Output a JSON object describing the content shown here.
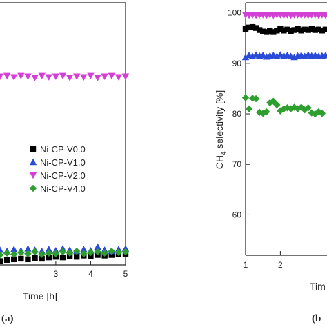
{
  "chart_data": [
    {
      "type": "scatter",
      "panel_label": "(a)",
      "xlabel": "Time [h]",
      "ylabel": "",
      "x_ticks": [
        3,
        4,
        5
      ],
      "xlim": [
        1.4,
        5
      ],
      "ylim": [
        60,
        102
      ],
      "legend": {
        "placement": "center-right",
        "entries": [
          "Ni-CP-V0.0",
          "Ni-CP-V1.0",
          "Ni-CP-V2.0",
          "Ni-CP-V4.0"
        ]
      },
      "series": [
        {
          "name": "Ni-CP-V0.0",
          "marker": "square",
          "color": "#000000",
          "x": [
            1.4,
            1.6,
            1.8,
            2.0,
            2.2,
            2.4,
            2.6,
            2.8,
            3.0,
            3.2,
            3.4,
            3.6,
            3.8,
            4.0,
            4.2,
            4.4,
            4.6,
            4.8,
            5.0
          ],
          "values": [
            60.6,
            60.8,
            60.9,
            61.0,
            60.9,
            61.1,
            61.0,
            61.2,
            61.3,
            61.2,
            61.4,
            61.3,
            61.5,
            61.4,
            61.6,
            61.5,
            61.6,
            61.7,
            61.8
          ]
        },
        {
          "name": "Ni-CP-V1.0",
          "marker": "triangle-up",
          "color": "#2a4bd7",
          "x": [
            1.4,
            1.6,
            1.8,
            2.0,
            2.2,
            2.4,
            2.6,
            2.8,
            3.0,
            3.2,
            3.4,
            3.6,
            3.8,
            4.0,
            4.2,
            4.4,
            4.6,
            4.8,
            5.0
          ],
          "values": [
            62.4,
            62.2,
            62.5,
            62.3,
            62.6,
            62.4,
            62.2,
            62.5,
            62.3,
            62.6,
            62.4,
            62.2,
            62.5,
            62.3,
            62.9,
            62.4,
            62.2,
            62.5,
            62.6
          ]
        },
        {
          "name": "Ni-CP-V2.0",
          "marker": "triangle-down",
          "color": "#d43fd6",
          "x": [
            1.4,
            1.6,
            1.8,
            2.0,
            2.2,
            2.4,
            2.6,
            2.8,
            3.0,
            3.2,
            3.4,
            3.6,
            3.8,
            4.0,
            4.2,
            4.4,
            4.6,
            4.8,
            5.0
          ],
          "values": [
            90.2,
            90.3,
            90.1,
            90.3,
            90.2,
            90.0,
            90.3,
            90.1,
            90.2,
            90.3,
            90.0,
            90.2,
            90.1,
            90.3,
            90.0,
            90.2,
            90.3,
            90.1,
            90.2
          ]
        },
        {
          "name": "Ni-CP-V4.0",
          "marker": "diamond",
          "color": "#2e9e2e",
          "x": [
            1.4,
            1.6,
            1.8,
            2.0,
            2.2,
            2.4,
            2.6,
            2.8,
            3.0,
            3.2,
            3.4,
            3.6,
            3.8,
            4.0,
            4.2,
            4.4,
            4.6,
            4.8,
            5.0
          ],
          "values": [
            61.6,
            61.9,
            61.7,
            62.0,
            61.8,
            62.1,
            61.7,
            61.9,
            61.8,
            62.1,
            61.9,
            62.2,
            61.8,
            62.0,
            62.1,
            61.9,
            62.2,
            62.0,
            62.1
          ]
        }
      ]
    },
    {
      "type": "scatter",
      "panel_label": "(b",
      "xlabel": "Tim",
      "ylabel_main": "CH",
      "ylabel_subscript": "4",
      "ylabel_rest": " selectivity [%]",
      "x_ticks": [
        1,
        2
      ],
      "y_ticks": [
        60,
        70,
        80,
        90,
        100
      ],
      "xlim": [
        1,
        3.5
      ],
      "ylim": [
        52,
        102
      ],
      "series": [
        {
          "name": "Ni-CP-V0.0",
          "marker": "square",
          "color": "#000000",
          "x": [
            1.0,
            1.1,
            1.2,
            1.3,
            1.4,
            1.5,
            1.6,
            1.7,
            1.8,
            1.9,
            2.0,
            2.1,
            2.2,
            2.3,
            2.4,
            2.5,
            2.6,
            2.7,
            2.8,
            2.9,
            3.0,
            3.1,
            3.2,
            3.3,
            3.4,
            3.5
          ],
          "values": [
            96.8,
            97.1,
            97.2,
            97.0,
            96.6,
            96.3,
            96.2,
            96.4,
            96.2,
            96.5,
            96.8,
            96.5,
            96.7,
            96.4,
            96.6,
            96.8,
            96.5,
            96.7,
            96.6,
            96.8,
            96.6,
            96.7,
            96.5,
            96.7,
            96.6,
            96.7
          ]
        },
        {
          "name": "Ni-CP-V1.0",
          "marker": "triangle-up",
          "color": "#2a4bd7",
          "x": [
            1.0,
            1.1,
            1.2,
            1.3,
            1.4,
            1.5,
            1.6,
            1.7,
            1.8,
            1.9,
            2.0,
            2.1,
            2.2,
            2.3,
            2.4,
            2.5,
            2.6,
            2.7,
            2.8,
            2.9,
            3.0,
            3.1,
            3.2,
            3.3,
            3.4,
            3.5
          ],
          "values": [
            91.2,
            91.6,
            91.4,
            91.7,
            91.5,
            91.6,
            91.3,
            91.5,
            91.6,
            91.4,
            91.7,
            91.5,
            91.6,
            91.4,
            91.2,
            91.5,
            91.6,
            91.4,
            91.7,
            91.5,
            91.6,
            91.4,
            91.5,
            91.6,
            91.4,
            91.5
          ]
        },
        {
          "name": "Ni-CP-V2.0",
          "marker": "triangle-down",
          "color": "#d43fd6",
          "x": [
            1.0,
            1.1,
            1.2,
            1.3,
            1.4,
            1.5,
            1.6,
            1.7,
            1.8,
            1.9,
            2.0,
            2.1,
            2.2,
            2.3,
            2.4,
            2.5,
            2.6,
            2.7,
            2.8,
            2.9,
            3.0,
            3.1,
            3.2,
            3.3,
            3.4,
            3.5
          ],
          "values": [
            99.6,
            99.5,
            99.6,
            99.5,
            99.6,
            99.6,
            99.5,
            99.6,
            99.5,
            99.6,
            99.6,
            99.5,
            99.6,
            99.5,
            99.6,
            99.6,
            99.5,
            99.6,
            99.5,
            99.6,
            99.6,
            99.5,
            99.6,
            99.5,
            99.6,
            99.6
          ]
        },
        {
          "name": "Ni-CP-V4.0",
          "marker": "diamond",
          "color": "#2e9e2e",
          "x": [
            1.0,
            1.1,
            1.2,
            1.3,
            1.4,
            1.5,
            1.6,
            1.7,
            1.8,
            1.9,
            2.0,
            2.1,
            2.2,
            2.3,
            2.4,
            2.5,
            2.6,
            2.7,
            2.8,
            2.9,
            3.0,
            3.1,
            3.2
          ],
          "values": [
            83.2,
            81.0,
            83.1,
            83.0,
            80.3,
            80.1,
            80.4,
            82.2,
            82.5,
            81.8,
            80.6,
            81.0,
            81.2,
            81.0,
            81.3,
            81.0,
            81.3,
            80.8,
            81.2,
            80.2,
            80.0,
            80.4,
            80.1
          ]
        }
      ]
    }
  ]
}
